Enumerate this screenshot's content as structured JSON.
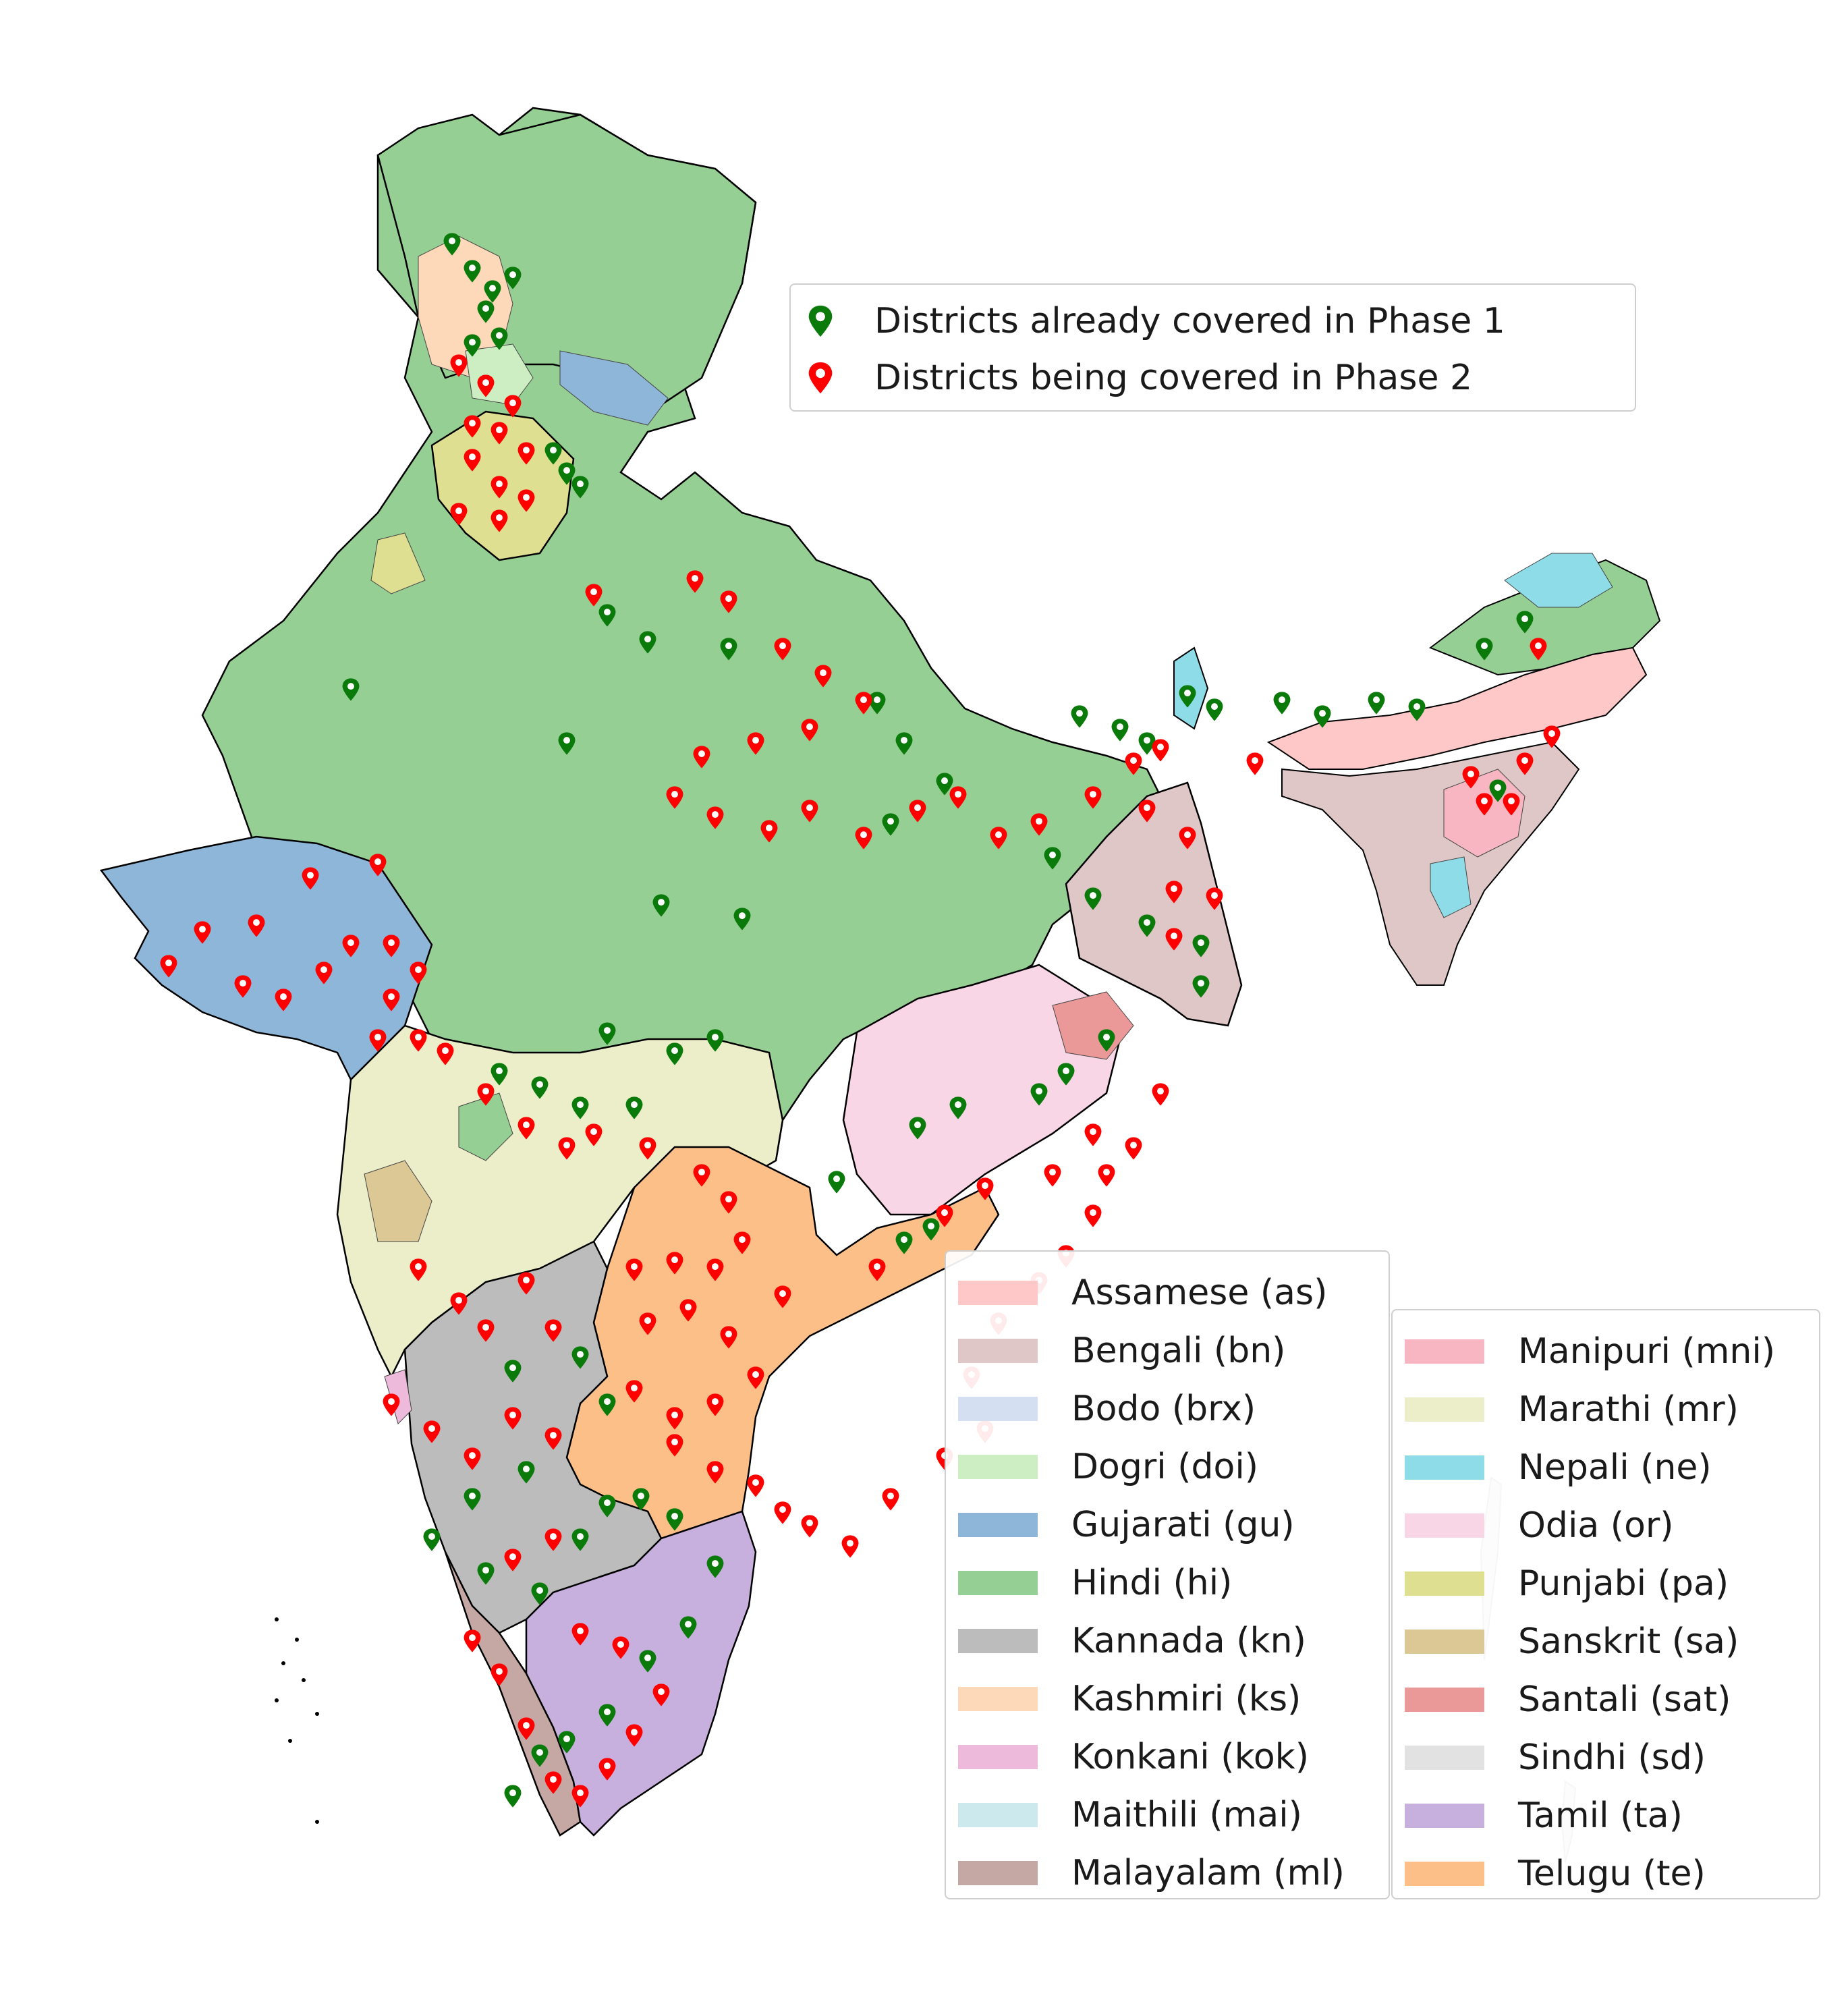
{
  "phase_legend": [
    {
      "label": "Districts already covered in Phase 1",
      "color": "#0a7a0a",
      "icon": "map-pin-icon"
    },
    {
      "label": "Districts being covered in Phase 2",
      "color": "#ff0000",
      "icon": "map-pin-icon"
    }
  ],
  "language_legend_left": [
    {
      "label": "Assamese (as)",
      "color": "#ffc8c8"
    },
    {
      "label": "Bengali (bn)",
      "color": "#dfc7c7"
    },
    {
      "label": "Bodo (brx)",
      "color": "#d4dff2"
    },
    {
      "label": "Dogri (doi)",
      "color": "#cdeec3"
    },
    {
      "label": "Gujarati (gu)",
      "color": "#8eb6d8"
    },
    {
      "label": "Hindi (hi)",
      "color": "#96cf93"
    },
    {
      "label": "Kannada (kn)",
      "color": "#bcbcbc"
    },
    {
      "label": "Kashmiri (ks)",
      "color": "#fed9b9"
    },
    {
      "label": "Konkani (kok)",
      "color": "#eebadc"
    },
    {
      "label": "Maithili (mai)",
      "color": "#cce9ee"
    },
    {
      "label": "Malayalam (ml)",
      "color": "#c5a8a4"
    }
  ],
  "language_legend_right": [
    {
      "label": "Manipuri (mni)",
      "color": "#f8b5c2"
    },
    {
      "label": "Marathi (mr)",
      "color": "#ecedc9"
    },
    {
      "label": "Nepali (ne)",
      "color": "#8ddce8"
    },
    {
      "label": "Odia (or)",
      "color": "#f8d6e6"
    },
    {
      "label": "Punjabi (pa)",
      "color": "#dfdf91"
    },
    {
      "label": "Sanskrit (sa)",
      "color": "#dbc895"
    },
    {
      "label": "Santali (sat)",
      "color": "#eb9898"
    },
    {
      "label": "Sindhi (sd)",
      "color": "#e2e2e2"
    },
    {
      "label": "Tamil (ta)",
      "color": "#c8b0de"
    },
    {
      "label": "Telugu (te)",
      "color": "#fdbf88"
    }
  ]
}
